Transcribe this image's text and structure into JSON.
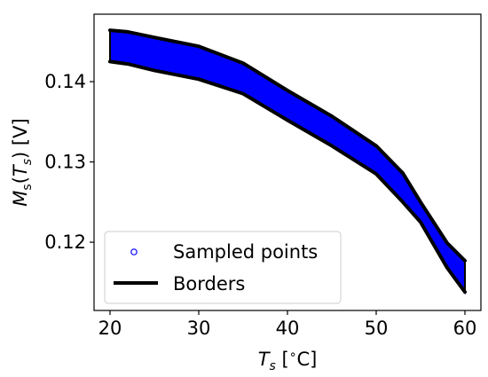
{
  "chart_data": {
    "type": "area",
    "xlabel": "T_s [°C]",
    "ylabel": "M_s(T_s) [V]",
    "xlim": [
      18.2,
      61.8
    ],
    "ylim": [
      0.1115,
      0.1484
    ],
    "xticks": [
      20,
      30,
      40,
      50,
      60
    ],
    "yticks": [
      0.12,
      0.13,
      0.14
    ],
    "xtick_labels": [
      "20",
      "30",
      "40",
      "50",
      "60"
    ],
    "ytick_labels": [
      "0.12",
      "0.13",
      "0.14"
    ],
    "grid": false,
    "legend_placement": "lower-left",
    "series": [
      {
        "name": "Sampled points",
        "marker": "circle",
        "color": "#0000ff",
        "x": [
          20,
          22,
          25,
          30,
          35,
          40,
          45,
          50,
          53,
          55,
          58,
          60
        ],
        "upper": [
          0.1464,
          0.1462,
          0.1455,
          0.1444,
          0.1423,
          0.1389,
          0.1357,
          0.132,
          0.1286,
          0.125,
          0.1199,
          0.1177
        ],
        "lower": [
          0.1425,
          0.1422,
          0.1414,
          0.1403,
          0.1385,
          0.1352,
          0.132,
          0.1285,
          0.125,
          0.1225,
          0.1168,
          0.1138
        ]
      },
      {
        "name": "Borders",
        "color": "#000000",
        "x": [
          20,
          22,
          25,
          30,
          35,
          40,
          45,
          50,
          53,
          55,
          58,
          60
        ],
        "upper": [
          0.1464,
          0.1462,
          0.1455,
          0.1444,
          0.1423,
          0.1389,
          0.1357,
          0.132,
          0.1286,
          0.125,
          0.1199,
          0.1177
        ],
        "lower": [
          0.1425,
          0.1422,
          0.1414,
          0.1403,
          0.1385,
          0.1352,
          0.132,
          0.1285,
          0.125,
          0.1225,
          0.1168,
          0.1138
        ]
      }
    ]
  }
}
